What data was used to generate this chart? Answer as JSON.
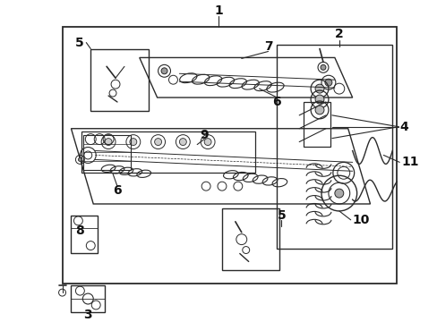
{
  "bg_color": "#ffffff",
  "line_color": "#2a2a2a",
  "fig_width": 4.89,
  "fig_height": 3.6,
  "dpi": 100,
  "label_fontsize": 10,
  "label_fontweight": "bold"
}
